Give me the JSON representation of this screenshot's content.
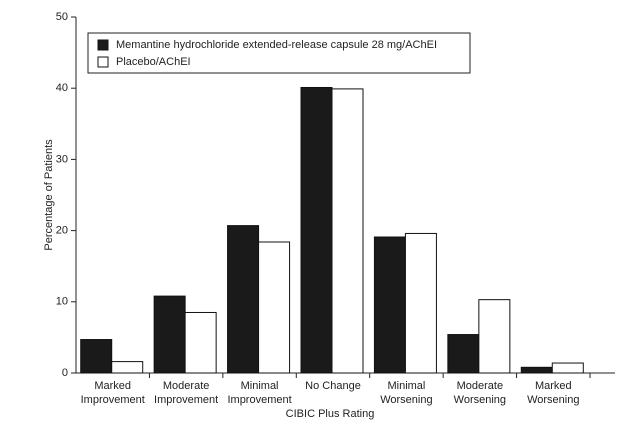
{
  "chart_data": {
    "type": "bar",
    "x_label": "CIBIC Plus Rating",
    "y_label": "Percentage of Patients",
    "categories": [
      [
        "Marked",
        "Improvement"
      ],
      [
        "Moderate",
        "Improvement"
      ],
      [
        "Minimal",
        "Improvement"
      ],
      [
        "No Change"
      ],
      [
        "Minimal",
        "Worsening"
      ],
      [
        "Moderate",
        "Worsening"
      ],
      [
        "Marked",
        "Worsening"
      ]
    ],
    "series": [
      {
        "name": "Memantine hydrochloride extended-release capsule 28 mg/AChEI",
        "color": "#1a1a1a",
        "values": [
          4.7,
          10.8,
          20.7,
          40.1,
          19.1,
          5.4,
          0.8
        ]
      },
      {
        "name": "Placebo/AChEI",
        "color": "#ffffff",
        "values": [
          1.6,
          8.5,
          18.4,
          39.9,
          19.6,
          10.3,
          1.4
        ]
      }
    ],
    "ylim": [
      0,
      50
    ],
    "yticks": [
      0,
      10,
      20,
      30,
      40,
      50
    ],
    "grid": false,
    "legend": "top-left"
  }
}
